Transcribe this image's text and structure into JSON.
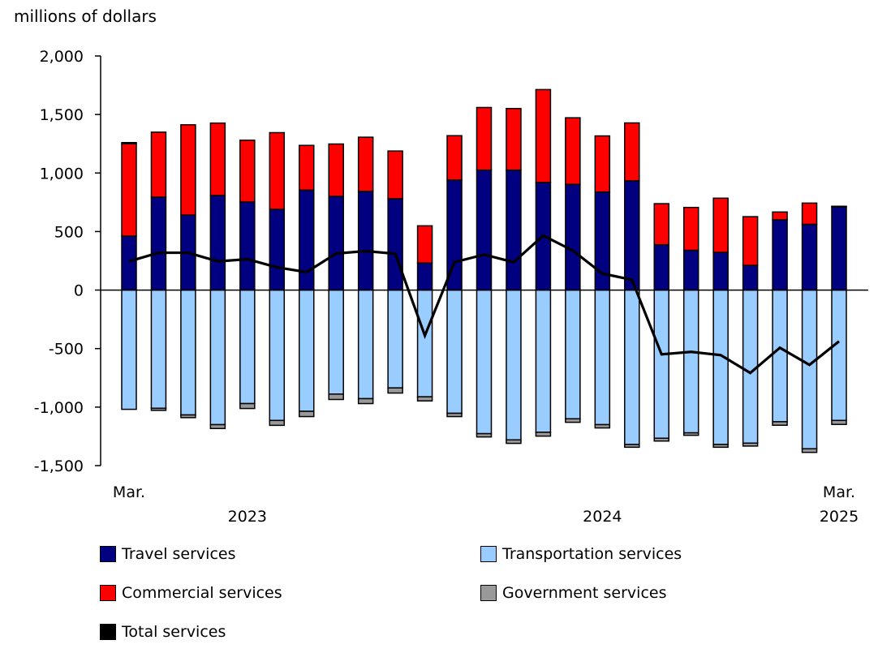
{
  "chart_data": {
    "type": "bar",
    "stacked": true,
    "ylabel": "millions of dollars",
    "ylim": [
      -1500,
      2000
    ],
    "yticks": [
      2000,
      1500,
      1000,
      500,
      0,
      -500,
      -1000,
      -1500
    ],
    "ytick_labels": [
      "2,000",
      "1,500",
      "1,000",
      "500",
      "0",
      "-500",
      "-1,000",
      "-1,500"
    ],
    "grid": false,
    "legend_placement": "bottom",
    "categories": [
      "Mar. 2023",
      "Apr. 2023",
      "May 2023",
      "Jun. 2023",
      "Jul. 2023",
      "Aug. 2023",
      "Sep. 2023",
      "Oct. 2023",
      "Nov. 2023",
      "Dec. 2023",
      "Jan. 2024",
      "Feb. 2024",
      "Mar. 2024",
      "Apr. 2024",
      "May 2024",
      "Jun. 2024",
      "Jul. 2024",
      "Aug. 2024",
      "Sep. 2024",
      "Oct. 2024",
      "Nov. 2024",
      "Dec. 2024",
      "Jan. 2025",
      "Feb. 2025",
      "Mar. 2025"
    ],
    "x_tick_labels": [
      {
        "text": "Mar.",
        "index": 0,
        "row": 1
      },
      {
        "text": "2023",
        "index": 4,
        "row": 2
      },
      {
        "text": "2024",
        "index": 16,
        "row": 2
      },
      {
        "text": "Mar.",
        "index": 24,
        "row": 1
      },
      {
        "text": "2025",
        "index": 24,
        "row": 2
      }
    ],
    "series": [
      {
        "name": "Travel services",
        "kind": "bar",
        "color": "#000080",
        "values": [
          461,
          794,
          641,
          808,
          752,
          690,
          854,
          801,
          843,
          780,
          231,
          940,
          1025,
          1025,
          919,
          903,
          838,
          933,
          387,
          340,
          322,
          211,
          600,
          562,
          711
        ]
      },
      {
        "name": "Commercial services",
        "kind": "bar",
        "color": "#ff0000",
        "values": [
          789,
          555,
          771,
          618,
          528,
          655,
          382,
          447,
          463,
          408,
          318,
          379,
          535,
          526,
          794,
          569,
          479,
          495,
          351,
          366,
          463,
          416,
          67,
          181,
          5
        ]
      },
      {
        "name": "Transportation services",
        "kind": "bar",
        "color": "#99ccff",
        "values": [
          -1019,
          -1010,
          -1067,
          -1150,
          -970,
          -1114,
          -1036,
          -889,
          -928,
          -836,
          -912,
          -1053,
          -1227,
          -1280,
          -1215,
          -1100,
          -1150,
          -1319,
          -1266,
          -1220,
          -1319,
          -1308,
          -1125,
          -1356,
          -1114
        ]
      },
      {
        "name": "Government services",
        "kind": "bar",
        "color": "#999999",
        "values": [
          10,
          -18,
          -23,
          -33,
          -42,
          -42,
          -45,
          -46,
          -42,
          -44,
          -35,
          -28,
          -28,
          -30,
          -33,
          -30,
          -28,
          -24,
          -24,
          -21,
          -24,
          -25,
          -30,
          -31,
          -34
        ]
      },
      {
        "name": "Total services",
        "kind": "line",
        "color": "#000000",
        "values": [
          245,
          319,
          319,
          245,
          264,
          194,
          153,
          312,
          333,
          310,
          -389,
          238,
          303,
          238,
          465,
          338,
          141,
          88,
          -549,
          -528,
          -556,
          -708,
          -493,
          -639,
          -438
        ]
      }
    ]
  },
  "legend": [
    {
      "label": "Travel services",
      "color": "#000080"
    },
    {
      "label": "Transportation services",
      "color": "#99ccff"
    },
    {
      "label": "Commercial services",
      "color": "#ff0000"
    },
    {
      "label": "Government services",
      "color": "#999999"
    },
    {
      "label": "Total services",
      "color": "#000000"
    }
  ]
}
